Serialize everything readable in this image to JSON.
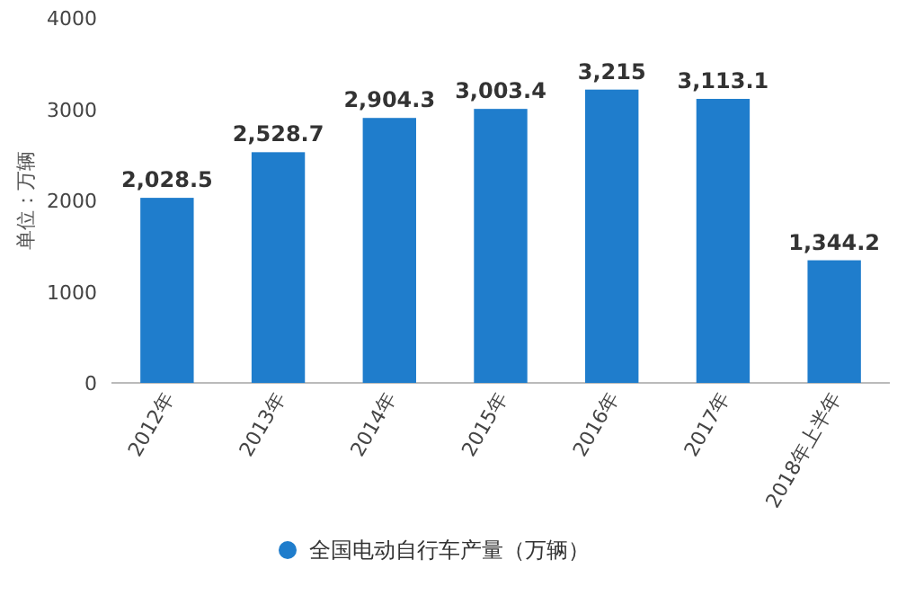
{
  "chart_data": {
    "type": "bar",
    "ylabel": "单位：万辆",
    "categories": [
      "2012年",
      "2013年",
      "2014年",
      "2015年",
      "2016年",
      "2017年",
      "2018年上半年"
    ],
    "series": [
      {
        "name": "全国电动自行车产量（万辆）",
        "color": "#1f7dcc",
        "values": [
          2028.5,
          2528.7,
          2904.3,
          3003.4,
          3215,
          3113.1,
          1344.2
        ],
        "value_labels": [
          "2,028.5",
          "2,528.7",
          "2,904.3",
          "3,003.4",
          "3,215",
          "3,113.1",
          "1,344.2"
        ]
      }
    ],
    "ylim": [
      0,
      4000
    ],
    "yticks": [
      0,
      1000,
      2000,
      3000,
      4000
    ],
    "legend": "bottom"
  }
}
